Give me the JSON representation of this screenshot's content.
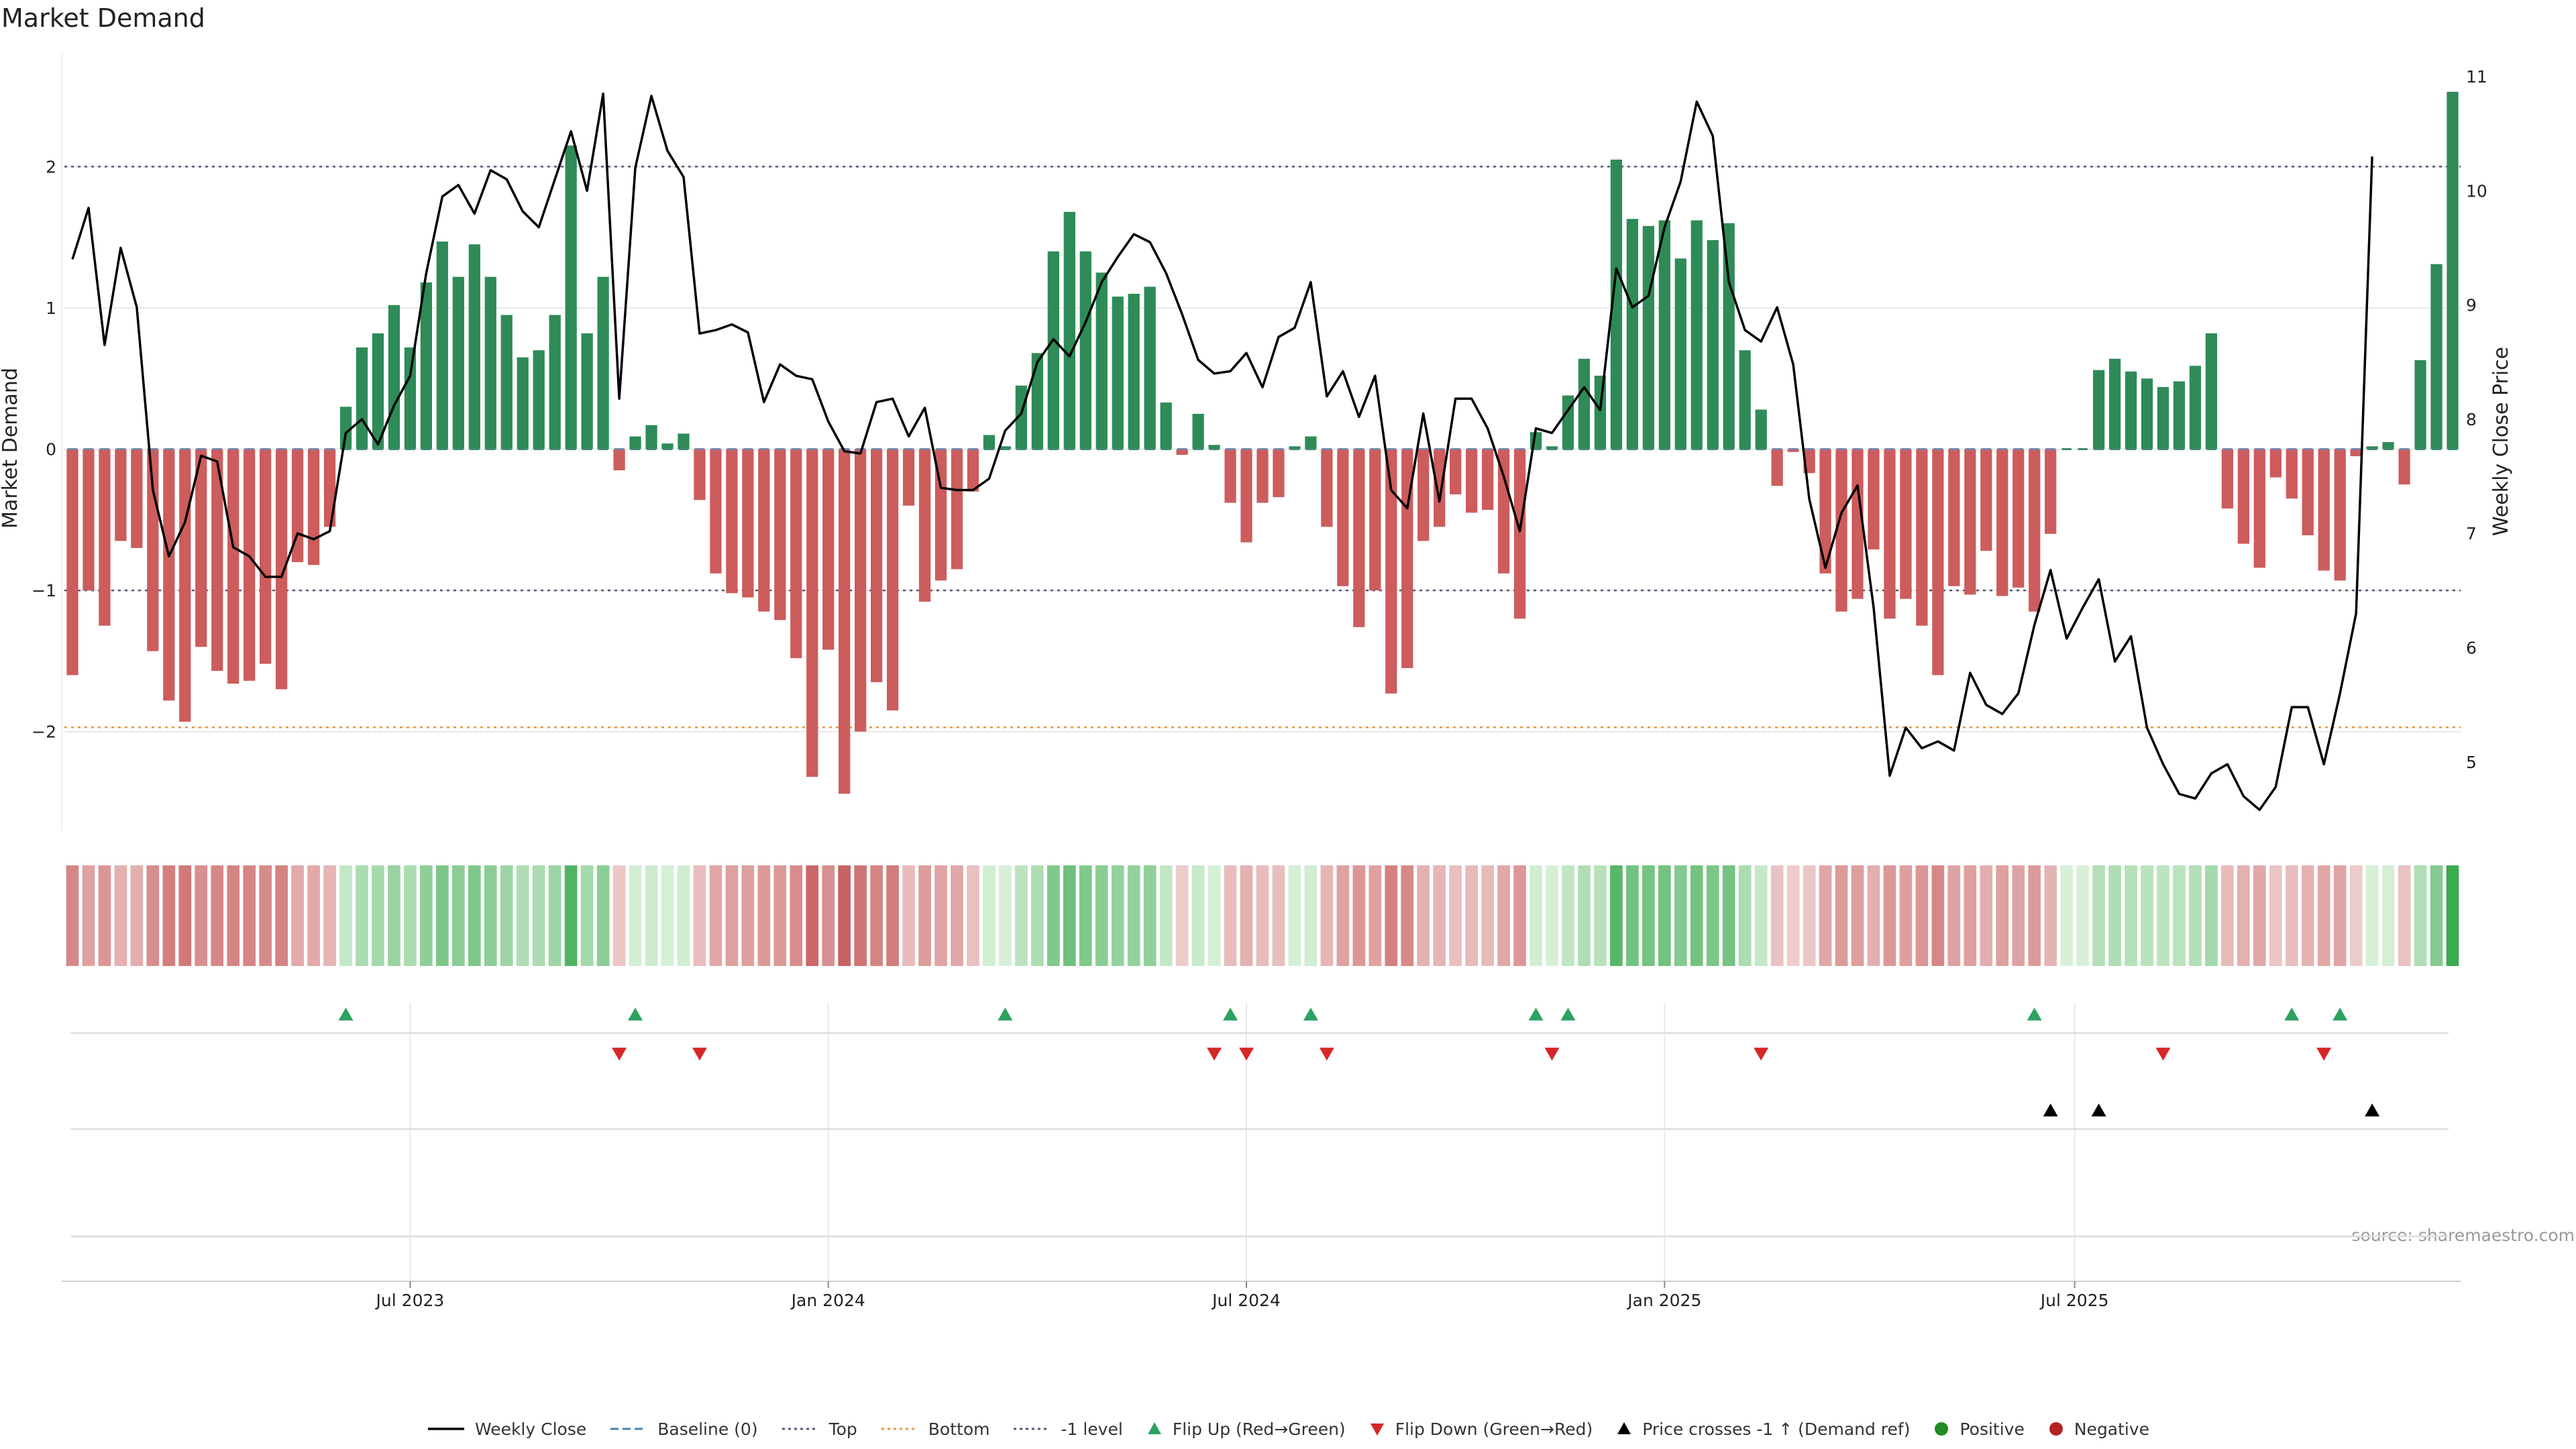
{
  "chart_data": {
    "type": "bar",
    "title": "Market Demand",
    "ylabel": "Market Demand",
    "y2label": "Weekly Close Price",
    "ylim": [
      -2.7,
      2.8
    ],
    "y2lim": [
      4.4,
      11.2
    ],
    "yticks": [
      -2,
      -1,
      0,
      1,
      2
    ],
    "y2ticks": [
      5,
      6,
      7,
      8,
      9,
      10,
      11
    ],
    "reference_lines": {
      "top": 2,
      "bottom": -1.97,
      "minus_one": -1
    },
    "x_tick_labels": [
      "Jul 2023",
      "Jan 2024",
      "Jul 2024",
      "Jan 2025",
      "Jul 2025"
    ],
    "x_tick_index": [
      21.5,
      47.5,
      73.5,
      99.5,
      125
    ],
    "colors": {
      "positive": "#2e8b57",
      "negative": "#cd5c5c",
      "baseline": "#4682b4",
      "price": "#000000",
      "flip_up": "#2ca25f",
      "flip_down": "#d62728",
      "cross": "#000000",
      "grid": "#e8e8e8"
    },
    "series": [
      {
        "name": "Market Demand",
        "values": [
          -1.6,
          -1.0,
          -1.25,
          -0.65,
          -0.7,
          -1.43,
          -1.78,
          -1.93,
          -1.4,
          -1.57,
          -1.66,
          -1.64,
          -1.52,
          -1.7,
          -0.8,
          -0.82,
          -0.55,
          0.3,
          0.72,
          0.82,
          1.02,
          0.72,
          1.18,
          1.47,
          1.22,
          1.45,
          1.22,
          0.95,
          0.65,
          0.7,
          0.95,
          2.15,
          0.82,
          1.22,
          -0.15,
          0.09,
          0.17,
          0.04,
          0.11,
          -0.36,
          -0.88,
          -1.02,
          -1.05,
          -1.15,
          -1.21,
          -1.48,
          -2.32,
          -1.42,
          -2.44,
          -2.0,
          -1.65,
          -1.85,
          -0.4,
          -1.08,
          -0.93,
          -0.85,
          -0.3,
          0.1,
          0.02,
          0.45,
          0.68,
          1.4,
          1.68,
          1.4,
          1.25,
          1.08,
          1.1,
          1.15,
          0.33,
          -0.04,
          0.25,
          0.03,
          -0.38,
          -0.66,
          -0.38,
          -0.34,
          0.02,
          0.09,
          -0.55,
          -0.97,
          -1.26,
          -1.0,
          -1.73,
          -1.55,
          -0.65,
          -0.55,
          -0.32,
          -0.45,
          -0.43,
          -0.88,
          -1.2,
          0.12,
          0.02,
          0.38,
          0.64,
          0.52,
          2.05,
          1.63,
          1.58,
          1.62,
          1.35,
          1.62,
          1.48,
          1.6,
          0.7,
          0.28,
          -0.26,
          -0.02,
          -0.17,
          -0.88,
          -1.15,
          -1.06,
          -0.71,
          -1.2,
          -1.06,
          -1.25,
          -1.6,
          -0.97,
          -1.03,
          -0.72,
          -1.04,
          -0.98,
          -1.15,
          -0.6,
          0.0,
          0.0,
          0.56,
          0.64,
          0.55,
          0.5,
          0.44,
          0.48,
          0.59,
          0.82,
          -0.42,
          -0.67,
          -0.84,
          -0.2,
          -0.35,
          -0.61,
          -0.86,
          -0.93,
          -0.05,
          0.02,
          0.05,
          -0.25,
          0.63,
          1.31,
          2.53
        ]
      },
      {
        "name": "Weekly Close",
        "values": [
          9.4,
          9.85,
          8.65,
          9.5,
          8.98,
          7.38,
          6.8,
          7.1,
          7.68,
          7.63,
          6.88,
          6.8,
          6.62,
          6.62,
          7.0,
          6.95,
          7.02,
          7.88,
          8.0,
          7.78,
          8.12,
          8.38,
          9.28,
          9.95,
          10.05,
          9.8,
          10.18,
          10.1,
          9.82,
          9.68,
          10.1,
          10.52,
          10.0,
          10.85,
          8.18,
          10.2,
          10.83,
          10.35,
          10.12,
          8.75,
          8.78,
          8.83,
          8.76,
          8.15,
          8.48,
          8.38,
          8.35,
          7.98,
          7.72,
          7.7,
          8.15,
          8.18,
          7.85,
          8.1,
          7.4,
          7.38,
          7.38,
          7.48,
          7.9,
          8.05,
          8.5,
          8.7,
          8.55,
          8.85,
          9.2,
          9.42,
          9.62,
          9.55,
          9.28,
          8.92,
          8.52,
          8.4,
          8.42,
          8.58,
          8.28,
          8.72,
          8.8,
          9.2,
          8.2,
          8.42,
          8.02,
          8.38,
          7.38,
          7.22,
          8.05,
          7.28,
          8.18,
          8.18,
          7.92,
          7.5,
          7.02,
          7.92,
          7.88,
          8.08,
          8.28,
          8.08,
          9.32,
          8.98,
          9.08,
          9.68,
          10.08,
          10.78,
          10.48,
          9.2,
          8.78,
          8.68,
          8.98,
          8.48,
          7.3,
          6.7,
          7.18,
          7.42,
          6.35,
          4.88,
          5.3,
          5.12,
          5.18,
          5.1,
          5.78,
          5.5,
          5.42,
          5.6,
          6.2,
          6.68,
          6.08,
          6.35,
          6.6,
          5.88,
          6.1,
          5.3,
          4.98,
          4.72,
          4.68,
          4.9,
          4.98,
          4.7,
          4.58,
          4.78,
          5.48,
          5.48,
          4.98,
          5.6,
          6.3,
          10.3
        ]
      }
    ],
    "markers": {
      "flip_up": [
        17,
        35,
        58,
        72,
        77,
        91,
        93,
        122,
        138,
        141
      ],
      "flip_down": [
        34,
        39,
        71,
        73,
        78,
        92,
        105,
        130,
        140
      ],
      "price_cross": [
        123,
        126,
        143
      ]
    },
    "legend": [
      {
        "label": "Weekly Close",
        "style": "line",
        "color": "#000000"
      },
      {
        "label": "Baseline (0)",
        "style": "dash",
        "color": "#4682b4"
      },
      {
        "label": "Top",
        "style": "dot",
        "color": "#555577"
      },
      {
        "label": "Bottom",
        "style": "dot",
        "color": "#e8963c"
      },
      {
        "label": "-1 level",
        "style": "dot",
        "color": "#555577"
      },
      {
        "label": "Flip Up (Red→Green)",
        "style": "tri-up",
        "color": "#2ca25f"
      },
      {
        "label": "Flip Down (Green→Red)",
        "style": "tri-down",
        "color": "#d62728"
      },
      {
        "label": "Price crosses -1 ↑ (Demand ref)",
        "style": "tri-up",
        "color": "#000000"
      },
      {
        "label": "Positive",
        "style": "circle",
        "color": "#228b22"
      },
      {
        "label": "Negative",
        "style": "circle",
        "color": "#b22222"
      }
    ],
    "source": "source: sharemaestro.com"
  }
}
